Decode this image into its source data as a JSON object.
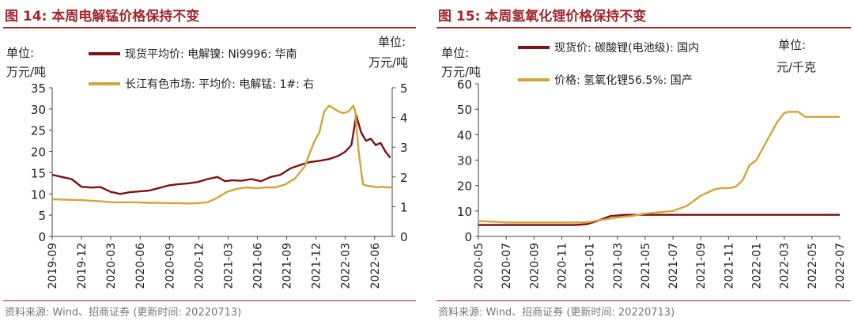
{
  "left_panel": {
    "title": "图 14:  本周电解锰价格保持不变",
    "source": "资料来源: Wind、招商证券 (更新时间: 20220713)"
  },
  "right_panel": {
    "title": "图 15:  本周氢氧化锂价格保持不变",
    "source": "资料来源: Wind、招商证券 (更新时间: 20220713)"
  },
  "colors": {
    "dark_red": "#7b1216",
    "gold": "#d2a53a",
    "title_red": "#a0282d"
  },
  "chart_data": [
    {
      "type": "line",
      "title": "图 14:  本周电解锰价格保持不变",
      "left_unit_line1": "单位:",
      "left_unit_line2": "万元/吨",
      "right_unit_line1": "单位:",
      "right_unit_line2": "万元/吨",
      "ylim_left": [
        0,
        35
      ],
      "ylim_right": [
        0,
        5
      ],
      "yticks_left": [
        "0",
        "5",
        "10",
        "15",
        "20",
        "25",
        "30",
        "35"
      ],
      "yticks_right": [
        "0",
        "1",
        "2",
        "3",
        "4",
        "5"
      ],
      "xlim": [
        0,
        35
      ],
      "x_tick_labels": [
        "2019-09",
        "2019-12",
        "2020-03",
        "2020-06",
        "2020-09",
        "2020-12",
        "2021-03",
        "2021-06",
        "2021-09",
        "2021-12",
        "2022-03",
        "2022-06"
      ],
      "series": [
        {
          "name": "现货平均价: 电解镍: Ni9996: 华南",
          "axis": "left",
          "color": "#7b1216",
          "x": [
            0,
            1,
            2,
            3,
            4,
            5,
            6,
            7,
            8,
            9,
            10,
            11,
            12,
            13,
            14,
            15,
            16,
            17,
            17.8,
            18.5,
            19.5,
            20.5,
            21.5,
            22.5,
            23.5,
            24.5,
            25.5,
            26.5,
            27.5,
            28.5,
            29.5,
            30.2,
            30.8,
            31.3,
            31.8,
            32.3,
            32.8,
            33.3,
            33.8,
            34.3,
            34.8
          ],
          "values": [
            14.5,
            14,
            13.5,
            11.7,
            11.5,
            11.6,
            10.5,
            10,
            10.4,
            10.6,
            10.8,
            11.4,
            12,
            12.3,
            12.5,
            12.8,
            13.5,
            14,
            13,
            13.2,
            13.1,
            13.5,
            13,
            14,
            14.5,
            16,
            16.8,
            17.5,
            17.8,
            18.2,
            19,
            20,
            21.5,
            28.5,
            24.5,
            22.5,
            23,
            21.5,
            22,
            20,
            18.5
          ]
        },
        {
          "name": "长江有色市场: 平均价: 电解锰: 1#: 右",
          "axis": "right",
          "color": "#d2a53a",
          "x": [
            0,
            2.8,
            3,
            4,
            5,
            6,
            7,
            8,
            9,
            10,
            11,
            12,
            13,
            14,
            15,
            16,
            17,
            18,
            19,
            20,
            21,
            22,
            23,
            24,
            25,
            26,
            26.5,
            27,
            27.5,
            28,
            28.5,
            29,
            29.5,
            30,
            30.5,
            31,
            31.2,
            31.5,
            31.8,
            32,
            32.5,
            33,
            33.5,
            34,
            34.5,
            35
          ],
          "values": [
            1.25,
            1.22,
            1.22,
            1.2,
            1.18,
            1.15,
            1.15,
            1.15,
            1.14,
            1.13,
            1.13,
            1.12,
            1.12,
            1.11,
            1.12,
            1.15,
            1.3,
            1.5,
            1.6,
            1.65,
            1.62,
            1.65,
            1.65,
            1.75,
            1.95,
            2.35,
            2.8,
            3.2,
            3.5,
            4.2,
            4.4,
            4.3,
            4.2,
            4.15,
            4.2,
            4.4,
            4.2,
            3,
            2.2,
            1.75,
            1.7,
            1.68,
            1.65,
            1.67,
            1.65,
            1.65
          ]
        }
      ]
    },
    {
      "type": "line",
      "title": "图 15:  本周氢氧化锂价格保持不变",
      "left_unit_line1": "单位:",
      "left_unit_line2": "万元/吨",
      "right_unit_line1": "单位:",
      "right_unit_line2": "元/千克",
      "ylim_left": [
        0,
        60
      ],
      "yticks_left": [
        "0",
        "10",
        "20",
        "30",
        "40",
        "50",
        "60"
      ],
      "xlim": [
        0,
        26
      ],
      "x_tick_labels": [
        "2020-05",
        "2020-07",
        "2020-09",
        "2020-11",
        "2021-01",
        "2021-03",
        "2021-05",
        "2021-07",
        "2021-09",
        "2021-11",
        "2022-01",
        "2022-03",
        "2022-05",
        "2022-07"
      ],
      "series": [
        {
          "name": "现货价: 碳酸锂(电池级): 国内",
          "axis": "left",
          "color": "#7b1216",
          "x": [
            0,
            2,
            4,
            6,
            7,
            7.8,
            8.5,
            9,
            9.5,
            10.5,
            12,
            14,
            18,
            22,
            26
          ],
          "values": [
            4.5,
            4.5,
            4.5,
            4.5,
            4.5,
            4.8,
            6,
            7,
            8,
            8.5,
            8.5,
            8.5,
            8.5,
            8.5,
            8.5
          ]
        },
        {
          "name": "价格: 氢氧化锂56.5%: 国产",
          "axis": "left",
          "color": "#d2a53a",
          "x": [
            0,
            1,
            2,
            3,
            4,
            5,
            6,
            7,
            7.5,
            8,
            8.5,
            9,
            9.5,
            10,
            11,
            12,
            13,
            14,
            15,
            16,
            17,
            17.5,
            18,
            18.5,
            19,
            19.5,
            20,
            20.5,
            21,
            21.5,
            22,
            22.3,
            22.6,
            23,
            23.5,
            24,
            24.5,
            25,
            26
          ],
          "values": [
            6,
            5.8,
            5.5,
            5.5,
            5.5,
            5.5,
            5.5,
            5.5,
            5.5,
            5.7,
            6.2,
            6.6,
            7,
            7.5,
            8,
            9,
            9.5,
            10,
            12,
            16,
            18.5,
            19,
            19,
            19.5,
            22,
            28,
            30,
            35,
            40,
            45,
            48.5,
            49,
            49,
            49,
            47,
            47,
            47,
            47,
            47
          ]
        }
      ]
    }
  ]
}
